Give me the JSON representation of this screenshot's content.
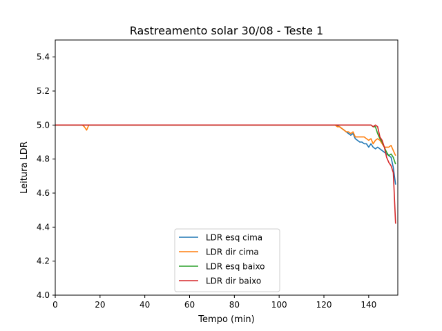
{
  "chart_data": {
    "type": "line",
    "title": "Rastreamento solar 30/08 - Teste 1",
    "xlabel": "Tempo (min)",
    "ylabel": "Leitura LDR",
    "xlim": [
      0,
      153
    ],
    "ylim": [
      4.0,
      5.5
    ],
    "xticks": [
      0,
      20,
      40,
      60,
      80,
      100,
      120,
      140
    ],
    "yticks": [
      4.0,
      4.2,
      4.4,
      4.6,
      4.8,
      5.0,
      5.2,
      5.4
    ],
    "xtick_labels": [
      "0",
      "20",
      "40",
      "60",
      "80",
      "100",
      "120",
      "140"
    ],
    "ytick_labels": [
      "4.0",
      "4.2",
      "4.4",
      "4.6",
      "4.8",
      "5.0",
      "5.2",
      "5.4"
    ],
    "grid": false,
    "legend": "lower-center",
    "series": [
      {
        "name": "LDR esq cima",
        "color": "#1f77b4",
        "points": [
          [
            0,
            5.0
          ],
          [
            125,
            5.0
          ],
          [
            127,
            4.99
          ],
          [
            128,
            4.98
          ],
          [
            129,
            4.97
          ],
          [
            130,
            4.96
          ],
          [
            131,
            4.95
          ],
          [
            132,
            4.94
          ],
          [
            133,
            4.95
          ],
          [
            134,
            4.92
          ],
          [
            135,
            4.91
          ],
          [
            136,
            4.9
          ],
          [
            137,
            4.9
          ],
          [
            138,
            4.89
          ],
          [
            139,
            4.89
          ],
          [
            140,
            4.87
          ],
          [
            141,
            4.89
          ],
          [
            142,
            4.87
          ],
          [
            143,
            4.86
          ],
          [
            144,
            4.87
          ],
          [
            145,
            4.86
          ],
          [
            146,
            4.85
          ],
          [
            147,
            4.84
          ],
          [
            148,
            4.83
          ],
          [
            149,
            4.82
          ],
          [
            150,
            4.81
          ],
          [
            151,
            4.75
          ],
          [
            152,
            4.65
          ]
        ]
      },
      {
        "name": "LDR dir cima",
        "color": "#ff7f0e",
        "points": [
          [
            0,
            5.0
          ],
          [
            12,
            5.0
          ],
          [
            13,
            4.99
          ],
          [
            14,
            4.97
          ],
          [
            15,
            5.0
          ],
          [
            125,
            5.0
          ],
          [
            126,
            4.99
          ],
          [
            127,
            4.99
          ],
          [
            128,
            4.98
          ],
          [
            129,
            4.97
          ],
          [
            130,
            4.96
          ],
          [
            131,
            4.96
          ],
          [
            132,
            4.95
          ],
          [
            133,
            4.96
          ],
          [
            134,
            4.93
          ],
          [
            135,
            4.93
          ],
          [
            136,
            4.93
          ],
          [
            137,
            4.93
          ],
          [
            138,
            4.93
          ],
          [
            139,
            4.92
          ],
          [
            140,
            4.91
          ],
          [
            141,
            4.92
          ],
          [
            142,
            4.89
          ],
          [
            143,
            4.91
          ],
          [
            144,
            4.92
          ],
          [
            145,
            4.91
          ],
          [
            146,
            4.89
          ],
          [
            147,
            4.87
          ],
          [
            148,
            4.87
          ],
          [
            149,
            4.87
          ],
          [
            150,
            4.88
          ],
          [
            151,
            4.85
          ],
          [
            152,
            4.82
          ]
        ]
      },
      {
        "name": "LDR esq baixo",
        "color": "#2ca02c",
        "points": [
          [
            0,
            5.0
          ],
          [
            140,
            5.0
          ],
          [
            141,
            5.0
          ],
          [
            142,
            4.99
          ],
          [
            143,
            4.99
          ],
          [
            144,
            4.95
          ],
          [
            145,
            4.92
          ],
          [
            146,
            4.9
          ],
          [
            147,
            4.87
          ],
          [
            148,
            4.84
          ],
          [
            149,
            4.82
          ],
          [
            150,
            4.83
          ],
          [
            151,
            4.81
          ],
          [
            152,
            4.77
          ]
        ]
      },
      {
        "name": "LDR dir baixo",
        "color": "#d62728",
        "points": [
          [
            0,
            5.0
          ],
          [
            140,
            5.0
          ],
          [
            141,
            5.0
          ],
          [
            142,
            4.99
          ],
          [
            143,
            5.0
          ],
          [
            144,
            4.99
          ],
          [
            145,
            4.93
          ],
          [
            146,
            4.91
          ],
          [
            147,
            4.87
          ],
          [
            148,
            4.81
          ],
          [
            149,
            4.78
          ],
          [
            150,
            4.76
          ],
          [
            151,
            4.72
          ],
          [
            152,
            4.42
          ]
        ]
      }
    ]
  }
}
